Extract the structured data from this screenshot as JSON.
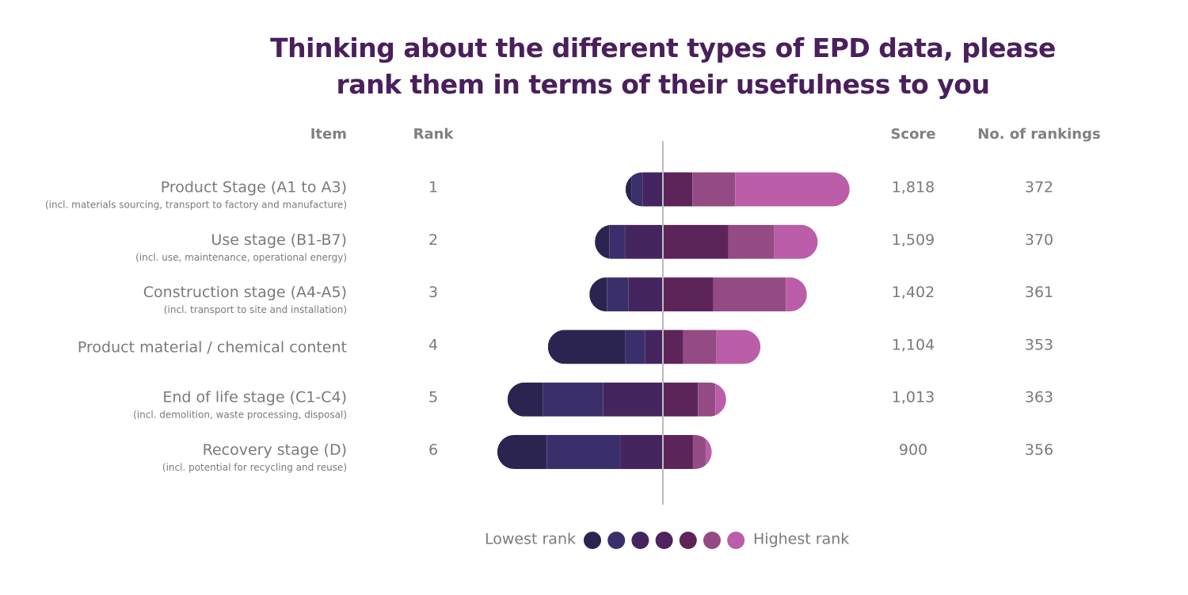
{
  "chart_data": {
    "type": "diverging_stacked_bar",
    "title": "Thinking about the different types of EPD data, please rank them in terms of their usefulness to you",
    "columns": {
      "item": "Item",
      "rank": "Rank",
      "score": "Score",
      "rankings": "No. of rankings"
    },
    "categories": [
      "Product Stage (A1 to A3)",
      "Use stage (B1-B7)",
      "Construction stage (A4-A5)",
      "Product material / chemical content",
      "End of life stage (C1-C4)",
      "Recovery stage (D)"
    ],
    "notes": [
      "(incl. materials sourcing, transport to factory and manufacture)",
      "(incl. use, maintenance, operational energy)",
      "(incl. transport to site and installation)",
      null,
      "(incl. demolition, waste processing, disposal)",
      "(incl. potential for recycling and reuse)"
    ],
    "ranks": [
      1,
      2,
      3,
      4,
      5,
      6
    ],
    "scores": [
      "1,818",
      "1,509",
      "1,402",
      "1,104",
      "1,013",
      "900"
    ],
    "rankings": [
      372,
      370,
      361,
      353,
      363,
      356
    ],
    "left_segments": 3,
    "series": [
      {
        "color": "#2b2450",
        "values": [
          10,
          24,
          29,
          129,
          59,
          82
        ]
      },
      {
        "color": "#3a2f6a",
        "values": [
          18,
          26,
          36,
          32,
          100,
          122
        ]
      },
      {
        "color": "#45255f",
        "values": [
          34,
          63,
          57,
          30,
          99,
          71
        ]
      },
      {
        "color": "#5c2459",
        "values": [
          49,
          109,
          84,
          34,
          58,
          50
        ]
      },
      {
        "color": "#944a82",
        "values": [
          71,
          76,
          120,
          55,
          29,
          21
        ]
      },
      {
        "color": "#bb5da8",
        "values": [
          190,
          72,
          35,
          73,
          18,
          10
        ]
      }
    ],
    "legend": {
      "low_label": "Lowest rank",
      "high_label": "Highest rank",
      "colors": [
        "#2b2450",
        "#3a2f6a",
        "#45255f",
        "#4f2260",
        "#5e2459",
        "#944a82",
        "#bb5da8"
      ]
    }
  }
}
